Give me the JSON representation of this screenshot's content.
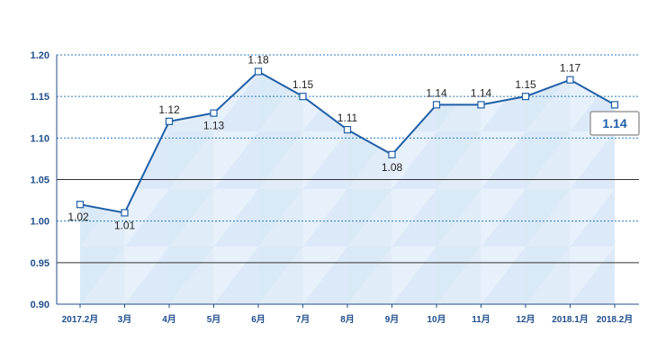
{
  "chart_data": {
    "type": "area",
    "categories": [
      "2017.2月",
      "3月",
      "4月",
      "5月",
      "6月",
      "7月",
      "8月",
      "9月",
      "10月",
      "11月",
      "12月",
      "2018.1月",
      "2018.2月"
    ],
    "values": [
      1.02,
      1.01,
      1.12,
      1.13,
      1.18,
      1.15,
      1.11,
      1.08,
      1.14,
      1.14,
      1.15,
      1.17,
      1.14
    ],
    "value_labels": [
      "1.02",
      "1.01",
      "1.12",
      "1.13",
      "1.18",
      "1.15",
      "1.11",
      "1.08",
      "1.14",
      "1.14",
      "1.15",
      "1.17",
      "1.14"
    ],
    "ylim": [
      0.9,
      1.2
    ],
    "y_ticks": [
      "1.20",
      "1.15",
      "1.10",
      "1.05",
      "1.00",
      "0.95",
      "0.90"
    ],
    "callout": "1.14",
    "grid": "horizontal",
    "colors": {
      "line": "#1f5fa8",
      "axis_text": "#1f4e8c",
      "fill_light": "#e7f1fb",
      "fill_dark": "#cfe1f3",
      "dotted_grid": "#2a7cc0",
      "solid_grid": "#333333",
      "callout_border": "#9a9a9a"
    }
  }
}
